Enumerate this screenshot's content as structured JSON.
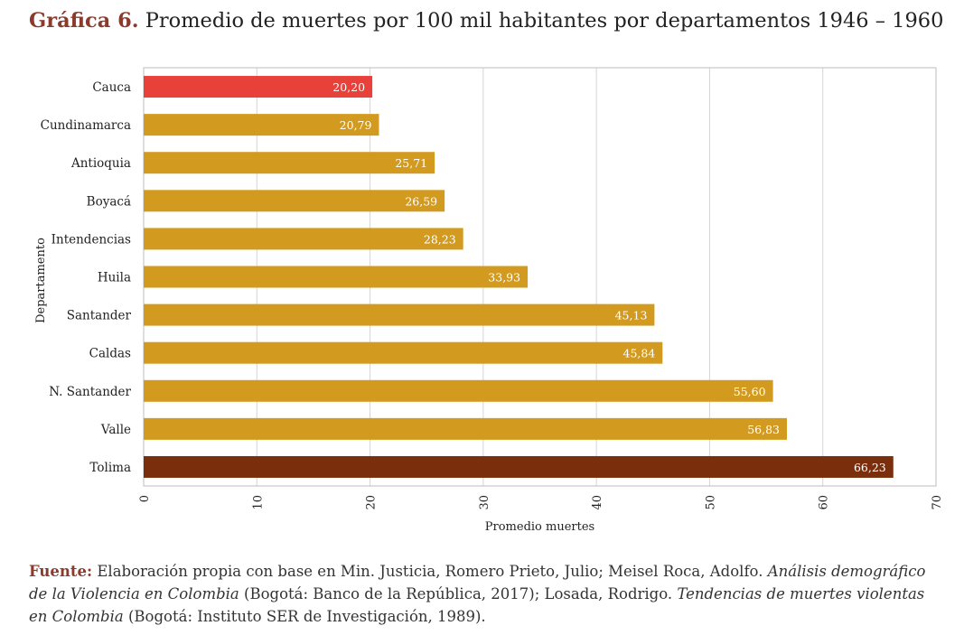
{
  "title": {
    "label": "Gráfica 6.",
    "text": "Promedio de muertes por 100 mil habitantes por departamentos 1946 – 1960"
  },
  "chart_data": {
    "type": "bar",
    "orientation": "horizontal",
    "categories": [
      "Cauca",
      "Cundinamarca",
      "Antioquia",
      "Boyacá",
      "Intendencias",
      "Huila",
      "Santander",
      "Caldas",
      "N. Santander",
      "Valle",
      "Tolima"
    ],
    "values": [
      20.2,
      20.79,
      25.71,
      26.59,
      28.23,
      33.93,
      45.13,
      45.84,
      55.6,
      56.83,
      66.23
    ],
    "value_labels": [
      "20,20",
      "20,79",
      "25,71",
      "26,59",
      "28,23",
      "33,93",
      "45,13",
      "45,84",
      "55,60",
      "56,83",
      "66,23"
    ],
    "colors": [
      "#e8413a",
      "#d29a1e",
      "#d29a1e",
      "#d29a1e",
      "#d29a1e",
      "#d29a1e",
      "#d29a1e",
      "#d29a1e",
      "#d29a1e",
      "#d29a1e",
      "#7a2e0c"
    ],
    "xlabel": "Promedio muertes",
    "ylabel": "Departamento",
    "xlim": [
      0,
      70
    ],
    "xticks": [
      "0",
      "10",
      "20",
      "30",
      "40",
      "50",
      "60",
      "70"
    ],
    "grid": true
  },
  "source": {
    "label": "Fuente:",
    "text1": " Elaboración propia con base en Min. Justicia, Romero Prieto, Julio; Meisel Roca, Adolfo. ",
    "italic1": "Análisis demográfico de la Violencia en Colombia",
    "text2": " (Bogotá: Banco de la República, 2017); Losada, Rodrigo. ",
    "italic2": "Tendencias de muertes violentas en Colombia",
    "text3": " (Bogotá: Instituto SER de Investigación, 1989)."
  }
}
